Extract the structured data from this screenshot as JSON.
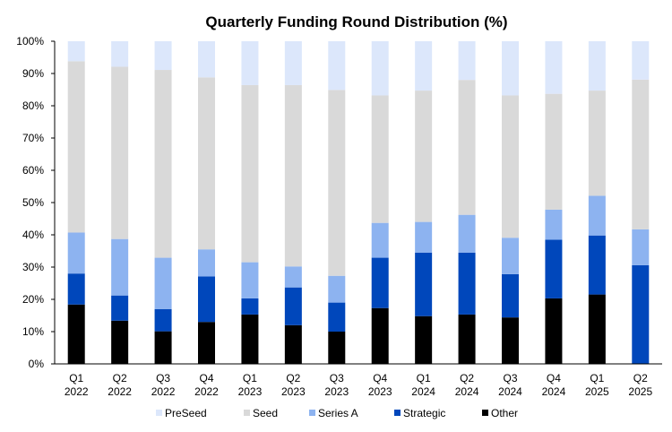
{
  "chart_data": {
    "type": "bar",
    "stacked": true,
    "title": "Quarterly Funding Round Distribution (%)",
    "xlabel": "",
    "ylabel": "",
    "ylim": [
      0,
      100
    ],
    "y_ticks": [
      "0%",
      "10%",
      "20%",
      "30%",
      "40%",
      "50%",
      "60%",
      "70%",
      "80%",
      "90%",
      "100%"
    ],
    "categories": [
      [
        "Q1",
        "2022"
      ],
      [
        "Q2",
        "2022"
      ],
      [
        "Q3",
        "2022"
      ],
      [
        "Q4",
        "2022"
      ],
      [
        "Q1",
        "2023"
      ],
      [
        "Q2",
        "2023"
      ],
      [
        "Q3",
        "2023"
      ],
      [
        "Q4",
        "2023"
      ],
      [
        "Q1",
        "2024"
      ],
      [
        "Q2",
        "2024"
      ],
      [
        "Q3",
        "2024"
      ],
      [
        "Q4",
        "2024"
      ],
      [
        "Q1",
        "2025"
      ],
      [
        "Q2",
        "2025"
      ]
    ],
    "series": [
      {
        "name": "Other",
        "color": "#000000",
        "values": [
          18.4,
          13.4,
          10.1,
          13.0,
          15.3,
          12.0,
          10.0,
          17.3,
          14.8,
          15.3,
          14.4,
          20.3,
          21.5,
          0.0
        ]
      },
      {
        "name": "Strategic",
        "color": "#0047BB",
        "values": [
          9.6,
          7.8,
          6.9,
          14.1,
          5.0,
          11.7,
          9.0,
          15.6,
          19.7,
          19.2,
          13.4,
          18.2,
          18.3,
          30.6
        ]
      },
      {
        "name": "Series A",
        "color": "#8DB3F0",
        "values": [
          12.7,
          17.5,
          15.9,
          8.4,
          11.2,
          6.5,
          8.3,
          10.8,
          9.5,
          11.7,
          11.3,
          9.3,
          12.3,
          11.1
        ]
      },
      {
        "name": "Seed",
        "color": "#D9D9D9",
        "values": [
          53.1,
          53.4,
          58.2,
          53.3,
          54.9,
          56.2,
          57.6,
          39.5,
          40.7,
          41.8,
          44.1,
          35.9,
          32.6,
          46.4
        ]
      },
      {
        "name": "PreSeed",
        "color": "#DCE7FB",
        "values": [
          6.2,
          7.9,
          8.9,
          11.2,
          13.6,
          13.6,
          15.1,
          16.8,
          15.3,
          12.0,
          16.8,
          16.3,
          15.3,
          11.9
        ]
      }
    ],
    "legend": {
      "position": "bottom",
      "order": [
        "PreSeed",
        "Seed",
        "Series A",
        "Strategic",
        "Other"
      ]
    }
  }
}
